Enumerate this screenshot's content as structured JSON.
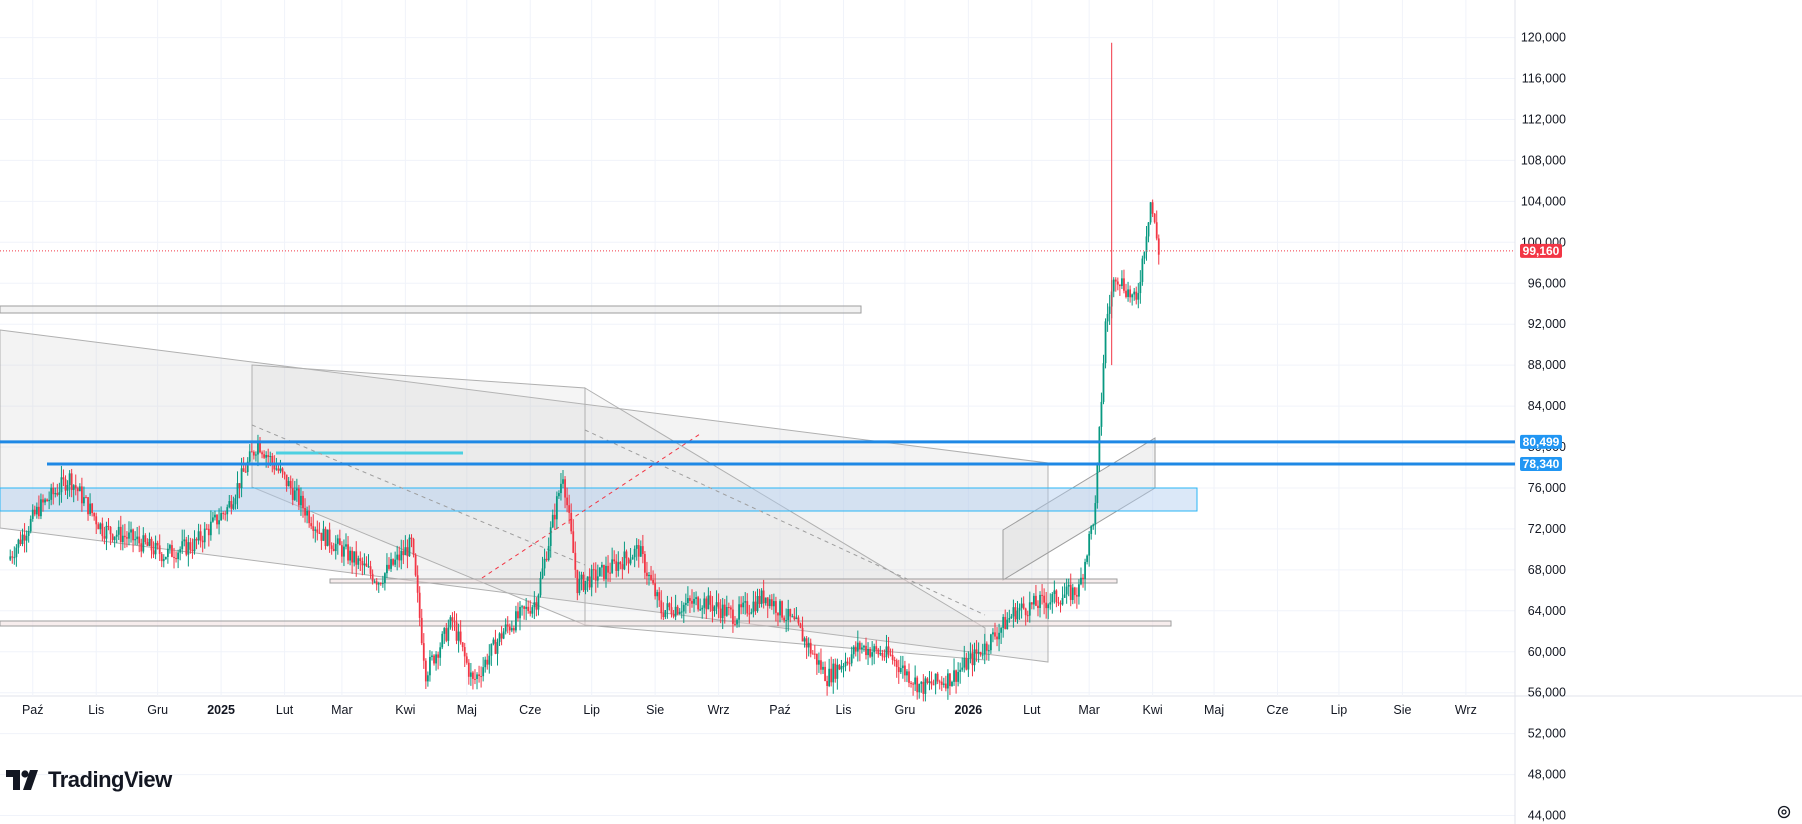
{
  "branding": {
    "logo_text": "TradingView",
    "logo_icon": "tradingview-logo-icon"
  },
  "settings_icon": "gear-icon",
  "price_axis": {
    "ticks": [
      120000,
      116000,
      112000,
      108000,
      104000,
      100000,
      96000,
      92000,
      88000,
      84000,
      80000,
      76000,
      72000,
      68000,
      64000,
      60000,
      56000,
      52000,
      48000,
      44000
    ],
    "tick_labels": [
      "120,000",
      "116,000",
      "112,000",
      "108,000",
      "104,000",
      "100,000",
      "96,000",
      "92,000",
      "88,000",
      "84,000",
      "80,000",
      "76,000",
      "72,000",
      "68,000",
      "64,000",
      "60,000",
      "56,000",
      "52,000",
      "48,000",
      "44,000"
    ]
  },
  "time_axis": {
    "labels": [
      {
        "text": "Paź",
        "year": false
      },
      {
        "text": "Lis",
        "year": false
      },
      {
        "text": "Gru",
        "year": false
      },
      {
        "text": "2025",
        "year": true
      },
      {
        "text": "Lut",
        "year": false
      },
      {
        "text": "Mar",
        "year": false
      },
      {
        "text": "Kwi",
        "year": false
      },
      {
        "text": "Maj",
        "year": false
      },
      {
        "text": "Cze",
        "year": false
      },
      {
        "text": "Lip",
        "year": false
      },
      {
        "text": "Sie",
        "year": false
      },
      {
        "text": "Wrz",
        "year": false
      },
      {
        "text": "Paź",
        "year": false
      },
      {
        "text": "Lis",
        "year": false
      },
      {
        "text": "Gru",
        "year": false
      },
      {
        "text": "2026",
        "year": true
      },
      {
        "text": "Lut",
        "year": false
      },
      {
        "text": "Mar",
        "year": false
      },
      {
        "text": "Kwi",
        "year": false
      },
      {
        "text": "Maj",
        "year": false
      },
      {
        "text": "Cze",
        "year": false
      },
      {
        "text": "Lip",
        "year": false
      },
      {
        "text": "Sie",
        "year": false
      },
      {
        "text": "Wrz",
        "year": false
      }
    ]
  },
  "price_tags": [
    {
      "label": "99,160",
      "value": 99160,
      "color": "#f23645",
      "line": "dotted"
    },
    {
      "label": "80,499",
      "value": 80499,
      "color": "#2196f3",
      "line": "solid"
    },
    {
      "label": "78,340",
      "value": 78340,
      "color": "#2196f3",
      "line": "solid"
    }
  ],
  "colors": {
    "up": "#089981",
    "down": "#f23645",
    "grid": "#f0f3fa",
    "level": "#1e88e5",
    "zone": "#c9d9f0",
    "channel": "#d9d9d9"
  },
  "chart_data": {
    "type": "candlestick",
    "y_range": [
      42000,
      122500
    ],
    "x_range": [
      "2024-09-15",
      "2026-09-25"
    ],
    "last_price": 99160,
    "horizontal_levels": [
      80499,
      78340
    ],
    "ohlc_weekly_approx": [
      {
        "t": "2024-09-20",
        "c": 69000
      },
      {
        "t": "2024-10-05",
        "c": 74000
      },
      {
        "t": "2024-10-20",
        "c": 77000
      },
      {
        "t": "2024-11-05",
        "c": 72000
      },
      {
        "t": "2024-11-20",
        "c": 71000
      },
      {
        "t": "2024-12-05",
        "c": 69500
      },
      {
        "t": "2024-12-20",
        "c": 70500
      },
      {
        "t": "2025-01-05",
        "c": 74000
      },
      {
        "t": "2025-01-20",
        "c": 80500
      },
      {
        "t": "2025-02-05",
        "c": 76000
      },
      {
        "t": "2025-02-20",
        "c": 71500
      },
      {
        "t": "2025-03-05",
        "c": 69500
      },
      {
        "t": "2025-03-20",
        "c": 67000
      },
      {
        "t": "2025-04-05",
        "c": 70500
      },
      {
        "t": "2025-04-12",
        "c": 58000
      },
      {
        "t": "2025-04-25",
        "c": 63000
      },
      {
        "t": "2025-05-05",
        "c": 57000
      },
      {
        "t": "2025-05-20",
        "c": 62000
      },
      {
        "t": "2025-06-05",
        "c": 65000
      },
      {
        "t": "2025-06-18",
        "c": 77500
      },
      {
        "t": "2025-06-25",
        "c": 66500
      },
      {
        "t": "2025-07-10",
        "c": 68000
      },
      {
        "t": "2025-07-25",
        "c": 70000
      },
      {
        "t": "2025-08-05",
        "c": 64000
      },
      {
        "t": "2025-08-25",
        "c": 65000
      },
      {
        "t": "2025-09-10",
        "c": 63500
      },
      {
        "t": "2025-09-25",
        "c": 65500
      },
      {
        "t": "2025-10-10",
        "c": 62500
      },
      {
        "t": "2025-10-25",
        "c": 57500
      },
      {
        "t": "2025-11-10",
        "c": 60500
      },
      {
        "t": "2025-11-25",
        "c": 59500
      },
      {
        "t": "2025-12-10",
        "c": 56500
      },
      {
        "t": "2025-12-25",
        "c": 57500
      },
      {
        "t": "2026-01-10",
        "c": 60500
      },
      {
        "t": "2026-01-25",
        "c": 64000
      },
      {
        "t": "2026-02-10",
        "c": 65000
      },
      {
        "t": "2026-02-25",
        "c": 66000
      },
      {
        "t": "2026-03-05",
        "c": 74000
      },
      {
        "t": "2026-03-10",
        "c": 92000
      },
      {
        "t": "2026-03-15",
        "c": 97000
      },
      {
        "t": "2026-03-25",
        "c": 94000
      },
      {
        "t": "2026-04-01",
        "c": 104000
      },
      {
        "t": "2026-04-05",
        "c": 99160
      }
    ]
  }
}
